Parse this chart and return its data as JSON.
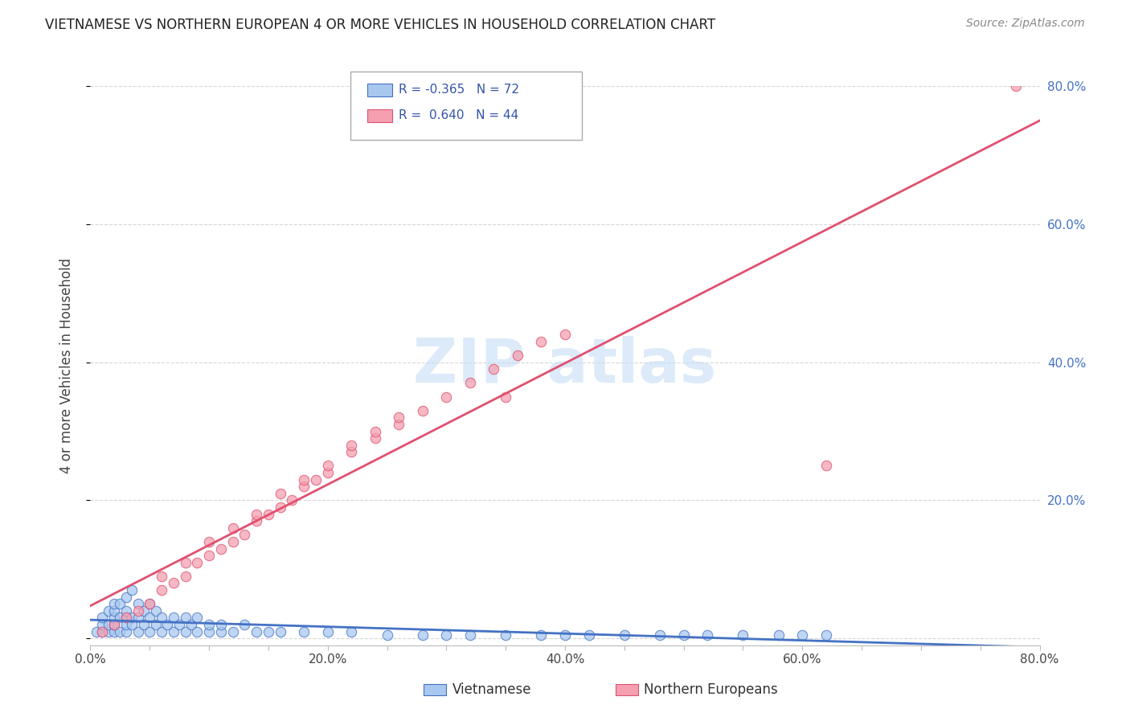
{
  "title": "VIETNAMESE VS NORTHERN EUROPEAN 4 OR MORE VEHICLES IN HOUSEHOLD CORRELATION CHART",
  "source": "Source: ZipAtlas.com",
  "ylabel": "4 or more Vehicles in Household",
  "xlim": [
    0.0,
    0.8
  ],
  "ylim": [
    -0.01,
    0.8
  ],
  "color_vietnamese": "#a8c8f0",
  "color_northern": "#f4a0b0",
  "color_vietnamese_line": "#4472c4",
  "color_northern_line": "#e05070",
  "background_color": "#ffffff",
  "grid_color": "#cccccc",
  "vietnamese_x": [
    0.005,
    0.01,
    0.01,
    0.01,
    0.015,
    0.015,
    0.015,
    0.02,
    0.02,
    0.02,
    0.02,
    0.02,
    0.025,
    0.025,
    0.025,
    0.03,
    0.03,
    0.03,
    0.03,
    0.03,
    0.035,
    0.035,
    0.035,
    0.04,
    0.04,
    0.04,
    0.045,
    0.045,
    0.05,
    0.05,
    0.05,
    0.055,
    0.055,
    0.06,
    0.06,
    0.065,
    0.07,
    0.07,
    0.075,
    0.08,
    0.08,
    0.085,
    0.09,
    0.09,
    0.1,
    0.1,
    0.11,
    0.11,
    0.12,
    0.13,
    0.14,
    0.15,
    0.16,
    0.18,
    0.2,
    0.22,
    0.25,
    0.28,
    0.3,
    0.32,
    0.35,
    0.38,
    0.4,
    0.42,
    0.45,
    0.48,
    0.5,
    0.52,
    0.55,
    0.58,
    0.6,
    0.62
  ],
  "vietnamese_y": [
    0.01,
    0.01,
    0.02,
    0.03,
    0.01,
    0.02,
    0.04,
    0.01,
    0.02,
    0.03,
    0.04,
    0.05,
    0.01,
    0.03,
    0.05,
    0.01,
    0.02,
    0.03,
    0.04,
    0.06,
    0.02,
    0.03,
    0.07,
    0.01,
    0.03,
    0.05,
    0.02,
    0.04,
    0.01,
    0.03,
    0.05,
    0.02,
    0.04,
    0.01,
    0.03,
    0.02,
    0.01,
    0.03,
    0.02,
    0.01,
    0.03,
    0.02,
    0.01,
    0.03,
    0.01,
    0.02,
    0.01,
    0.02,
    0.01,
    0.02,
    0.01,
    0.01,
    0.01,
    0.01,
    0.01,
    0.01,
    0.005,
    0.005,
    0.005,
    0.005,
    0.005,
    0.005,
    0.005,
    0.005,
    0.005,
    0.005,
    0.005,
    0.005,
    0.005,
    0.005,
    0.005,
    0.005
  ],
  "northern_x": [
    0.01,
    0.02,
    0.03,
    0.04,
    0.05,
    0.06,
    0.07,
    0.08,
    0.09,
    0.1,
    0.11,
    0.12,
    0.13,
    0.14,
    0.15,
    0.16,
    0.17,
    0.18,
    0.19,
    0.2,
    0.22,
    0.24,
    0.26,
    0.28,
    0.3,
    0.32,
    0.34,
    0.36,
    0.38,
    0.4,
    0.06,
    0.08,
    0.1,
    0.12,
    0.14,
    0.16,
    0.18,
    0.2,
    0.22,
    0.24,
    0.26,
    0.62,
    0.78,
    0.35
  ],
  "northern_y": [
    0.01,
    0.02,
    0.03,
    0.04,
    0.05,
    0.07,
    0.08,
    0.09,
    0.11,
    0.12,
    0.13,
    0.14,
    0.15,
    0.17,
    0.18,
    0.19,
    0.2,
    0.22,
    0.23,
    0.24,
    0.27,
    0.29,
    0.31,
    0.33,
    0.35,
    0.37,
    0.39,
    0.41,
    0.43,
    0.44,
    0.09,
    0.11,
    0.14,
    0.16,
    0.18,
    0.21,
    0.23,
    0.25,
    0.28,
    0.3,
    0.32,
    0.25,
    0.8,
    0.35
  ]
}
